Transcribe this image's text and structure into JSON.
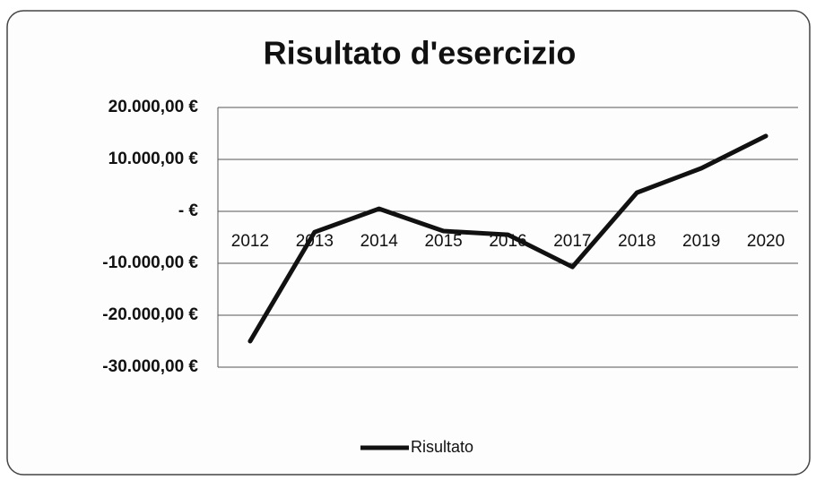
{
  "chart_data": {
    "type": "line",
    "title": "Risultato d'esercizio",
    "categories": [
      "2012",
      "2013",
      "2014",
      "2015",
      "2016",
      "2017",
      "2018",
      "2019",
      "2020"
    ],
    "series": [
      {
        "name": "Risultato",
        "color": "#111111",
        "values": [
          -25000,
          -4000,
          500,
          -3800,
          -4500,
          -10700,
          3600,
          8300,
          14500
        ]
      }
    ],
    "ylim": [
      -30000,
      20000
    ],
    "yticks": [
      {
        "value": -30000,
        "label": "-30.000,00 €"
      },
      {
        "value": -20000,
        "label": "-20.000,00 €"
      },
      {
        "value": -10000,
        "label": "-10.000,00 €"
      },
      {
        "value": 0,
        "label": "-   €"
      },
      {
        "value": 10000,
        "label": "10.000,00 €"
      },
      {
        "value": 20000,
        "label": "20.000,00 €"
      }
    ],
    "grid": true,
    "legend": "bottom"
  }
}
